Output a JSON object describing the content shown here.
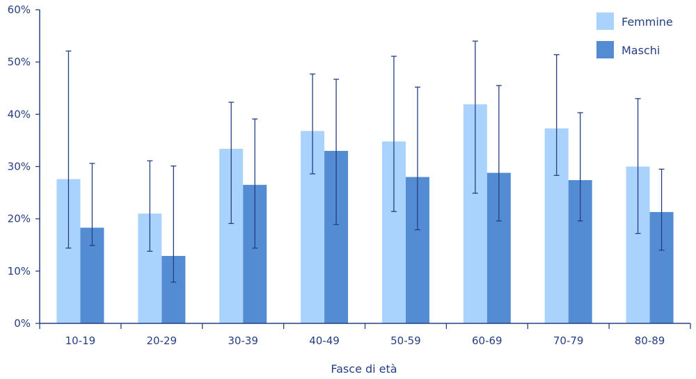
{
  "chart_data": {
    "type": "bar",
    "title": "",
    "xlabel": "Fasce di età",
    "ylabel": "",
    "ylim": [
      0,
      60
    ],
    "yticks": [
      "0%",
      "10%",
      "20%",
      "30%",
      "40%",
      "50%",
      "60%"
    ],
    "categories": [
      "10-19",
      "20-29",
      "30-39",
      "40-49",
      "50-59",
      "60-69",
      "70-79",
      "80-89"
    ],
    "series": [
      {
        "name": "Femmine",
        "color": "#a9d3fc",
        "values": [
          27.6,
          21.0,
          33.4,
          36.8,
          34.8,
          41.9,
          37.3,
          30.0
        ],
        "error_low": [
          14.4,
          13.8,
          19.1,
          28.6,
          21.4,
          24.9,
          28.3,
          17.2
        ],
        "error_high": [
          52.1,
          31.1,
          42.3,
          47.7,
          51.1,
          54.0,
          51.4,
          43.0
        ]
      },
      {
        "name": "Maschi",
        "color": "#548cd4",
        "values": [
          18.3,
          12.9,
          26.5,
          33.0,
          28.0,
          28.8,
          27.4,
          21.3
        ],
        "error_low": [
          14.9,
          7.9,
          14.4,
          18.9,
          17.9,
          19.6,
          19.6,
          14.0
        ],
        "error_high": [
          30.6,
          30.1,
          39.1,
          46.7,
          45.2,
          45.5,
          40.3,
          29.5
        ]
      }
    ],
    "grid": false,
    "legend": "top-right",
    "colors": {
      "axis": "#253e80",
      "error_bar": "#253e80"
    }
  }
}
